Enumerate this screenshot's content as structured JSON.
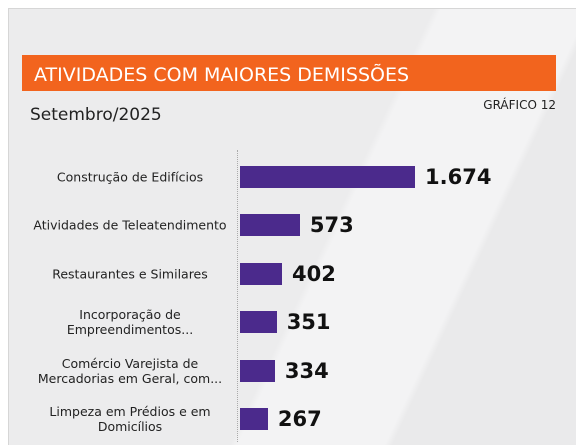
{
  "chart_data": {
    "type": "bar",
    "orientation": "horizontal",
    "title": "ATIVIDADES COM MAIORES DEMISSÕES",
    "subtitle": "Setembro/2025",
    "label": "GRÁFICO 12",
    "categories": [
      "Construção de Edifícios",
      "Atividades de Teleatendimento",
      "Restaurantes e Similares",
      "Incorporação de Empreendimentos...",
      "Comércio Varejista de Mercadorias em Geral, com...",
      "Limpeza em Prédios e em Domicílios"
    ],
    "values": [
      1674,
      573,
      402,
      351,
      334,
      267
    ],
    "value_labels": [
      "1.674",
      "573",
      "402",
      "351",
      "334",
      "267"
    ],
    "color": "#4b2a8c",
    "title_color": "#f2641e"
  }
}
